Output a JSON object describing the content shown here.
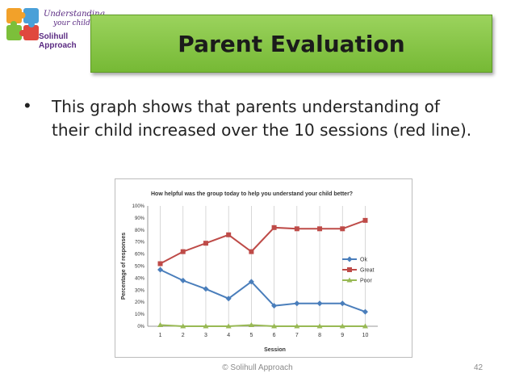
{
  "logo": {
    "line1": "Understanding",
    "line2": "your child",
    "line3": "Solihull Approach"
  },
  "slide": {
    "title": "Parent Evaluation",
    "bullet": "This graph shows that parents understanding of their child increased over the 10 sessions (red line).",
    "footer": "© Solihull Approach",
    "page_number": "42"
  },
  "colors": {
    "banner": "#84c441",
    "ok": "#4a7ebb",
    "great": "#be4b48",
    "poor": "#98b954"
  },
  "chart_data": {
    "type": "line",
    "title": "How helpful was the group today to help you understand your child better?",
    "xlabel": "Session",
    "ylabel": "Percentage of responses",
    "categories": [
      "1",
      "2",
      "3",
      "4",
      "5",
      "6",
      "7",
      "8",
      "9",
      "10"
    ],
    "y_ticks": [
      "0%",
      "10%",
      "20%",
      "30%",
      "40%",
      "50%",
      "60%",
      "70%",
      "80%",
      "90%",
      "100%"
    ],
    "ylim": [
      0,
      100
    ],
    "legend_position": "right",
    "grid": "vertical",
    "series": [
      {
        "name": "Ok",
        "color": "#4a7ebb",
        "marker": "diamond",
        "values": [
          47,
          38,
          31,
          23,
          37,
          17,
          19,
          19,
          19,
          12
        ]
      },
      {
        "name": "Great",
        "color": "#be4b48",
        "marker": "square",
        "values": [
          52,
          62,
          69,
          76,
          62,
          82,
          81,
          81,
          81,
          88
        ]
      },
      {
        "name": "Poor",
        "color": "#98b954",
        "marker": "triangle",
        "values": [
          1,
          0,
          0,
          0,
          1,
          0,
          0,
          0,
          0,
          0
        ]
      }
    ]
  }
}
